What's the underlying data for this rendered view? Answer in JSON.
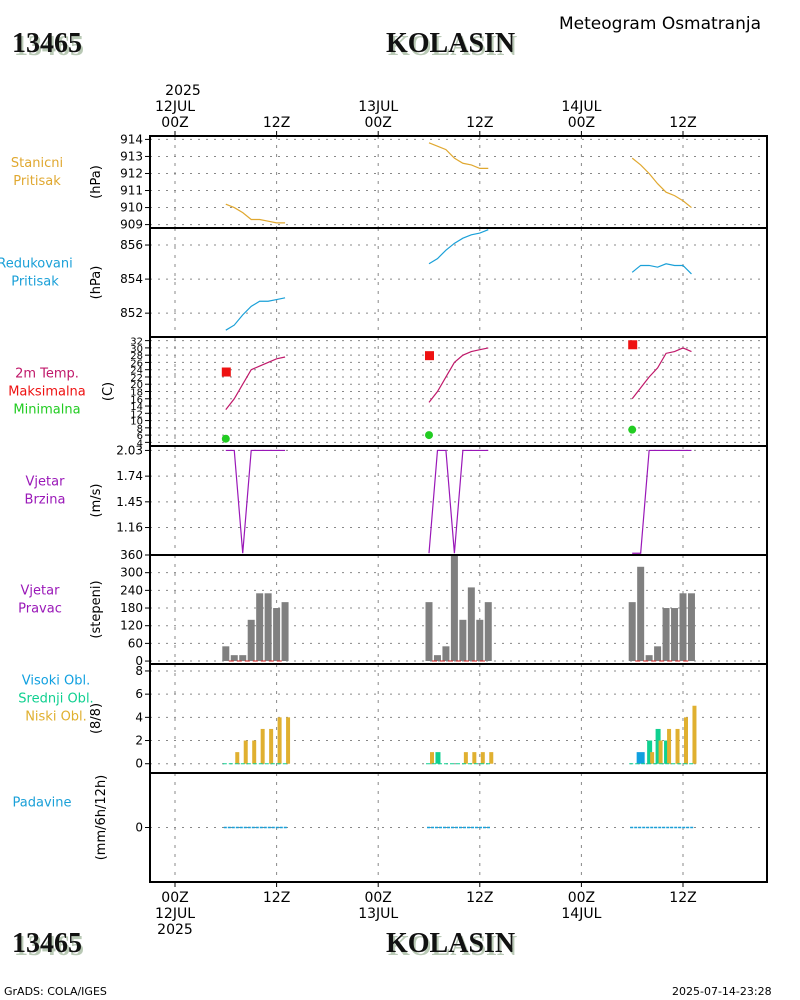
{
  "header": {
    "station_id": "13465",
    "station_name": "KOLASIN",
    "subtitle": "Meteogram Osmatranja"
  },
  "footer": {
    "station_id": "13465",
    "station_name": "KOLASIN",
    "software": "GrADS: COLA/IGES",
    "timestamp": "2025-07-14-23:28"
  },
  "time_axis": {
    "top_labels": [
      {
        "h": 0,
        "lines": [
          "2025",
          "12JUL",
          "00Z"
        ]
      },
      {
        "h": 12,
        "lines": [
          "12Z"
        ]
      },
      {
        "h": 24,
        "lines": [
          "13JUL",
          "00Z"
        ]
      },
      {
        "h": 36,
        "lines": [
          "12Z"
        ]
      },
      {
        "h": 48,
        "lines": [
          "14JUL",
          "00Z"
        ]
      },
      {
        "h": 60,
        "lines": [
          "12Z"
        ]
      }
    ],
    "bottom_labels": [
      {
        "h": 0,
        "lines": [
          "00Z",
          "12JUL",
          "2025"
        ]
      },
      {
        "h": 12,
        "lines": [
          "12Z"
        ]
      },
      {
        "h": 24,
        "lines": [
          "00Z",
          "13JUL"
        ]
      },
      {
        "h": 36,
        "lines": [
          "12Z"
        ]
      },
      {
        "h": 48,
        "lines": [
          "00Z",
          "14JUL"
        ]
      },
      {
        "h": 60,
        "lines": [
          "12Z"
        ]
      }
    ]
  },
  "colors": {
    "station_pressure": "#e0a830",
    "reduced_pressure": "#1aa0d8",
    "temp": "#c0186a",
    "tmax": "#ee1111",
    "tmin": "#22cc22",
    "wind": "#9a18b8",
    "wind_dir_bar": "#808080",
    "wind_dir_base": "#dd2222",
    "cloud_high": "#10a0e0",
    "cloud_mid": "#10d090",
    "cloud_low": "#e0b030",
    "precip": "#1aa0d8"
  },
  "chart_data": [
    {
      "type": "line",
      "id": "station_pressure",
      "title_lines": [
        "Stanicni",
        "Pritisak"
      ],
      "ylabel": "(hPa)",
      "ylim": [
        908.8,
        914.2
      ],
      "yticks": [
        "909",
        "910",
        "911",
        "912",
        "913",
        "914"
      ],
      "ytick_values": [
        909,
        910,
        911,
        912,
        913,
        914
      ],
      "series": [
        {
          "name": "day1",
          "x": [
            6,
            7,
            8,
            9,
            10,
            11,
            12,
            13
          ],
          "y": [
            910.2,
            910.0,
            909.7,
            909.3,
            909.3,
            909.2,
            909.1,
            909.1
          ]
        },
        {
          "name": "day2",
          "x": [
            30,
            31,
            32,
            33,
            34,
            35,
            36,
            37
          ],
          "y": [
            913.8,
            913.6,
            913.4,
            912.9,
            912.6,
            912.5,
            912.3,
            912.3
          ]
        },
        {
          "name": "day3",
          "x": [
            54,
            55,
            56,
            57,
            58,
            59,
            60,
            61
          ],
          "y": [
            912.9,
            912.5,
            912.0,
            911.4,
            910.9,
            910.7,
            910.4,
            910.0
          ]
        }
      ]
    },
    {
      "type": "line",
      "id": "reduced_pressure",
      "title_lines": [
        "Redukovani",
        "Pritisak"
      ],
      "ylabel": "(hPa)",
      "ylim": [
        850.6,
        857.0
      ],
      "yticks": [
        "852",
        "854",
        "856"
      ],
      "ytick_values": [
        852,
        854,
        856
      ],
      "series": [
        {
          "name": "day1",
          "x": [
            6,
            7,
            8,
            9,
            10,
            11,
            12,
            13
          ],
          "y": [
            851.0,
            851.3,
            851.9,
            852.4,
            852.7,
            852.7,
            852.8,
            852.9
          ]
        },
        {
          "name": "day2",
          "x": [
            30,
            31,
            32,
            33,
            34,
            35,
            36,
            37
          ],
          "y": [
            854.9,
            855.2,
            855.7,
            856.1,
            856.4,
            856.6,
            856.7,
            856.9
          ]
        },
        {
          "name": "day3",
          "x": [
            54,
            55,
            56,
            57,
            58,
            59,
            60,
            61
          ],
          "y": [
            854.4,
            854.8,
            854.8,
            854.7,
            854.9,
            854.8,
            854.8,
            854.3
          ]
        }
      ]
    },
    {
      "type": "line",
      "id": "temperature",
      "title_lines": [
        "2m Temp.",
        "Maksimalna",
        "Minimalna"
      ],
      "ylabel": "(C)",
      "ylim": [
        3,
        33
      ],
      "yticks": [
        "4",
        "6",
        "8",
        "10",
        "12",
        "14",
        "16",
        "18",
        "20",
        "22",
        "24",
        "26",
        "28",
        "30",
        "32"
      ],
      "ytick_values": [
        4,
        6,
        8,
        10,
        12,
        14,
        16,
        18,
        20,
        22,
        24,
        26,
        28,
        30,
        32
      ],
      "series": [
        {
          "name": "day1",
          "x": [
            6,
            7,
            8,
            9,
            10,
            11,
            12,
            13
          ],
          "y": [
            13,
            16,
            20,
            24,
            25,
            26,
            27,
            27.5
          ]
        },
        {
          "name": "day2",
          "x": [
            30,
            31,
            32,
            33,
            34,
            35,
            36,
            37
          ],
          "y": [
            15,
            18,
            22,
            26,
            28,
            29,
            29.5,
            30
          ]
        },
        {
          "name": "day3",
          "x": [
            54,
            55,
            56,
            57,
            58,
            59,
            60,
            61
          ],
          "y": [
            16,
            19,
            22,
            24.5,
            28.5,
            29,
            30,
            29
          ]
        }
      ],
      "tmax": [
        {
          "x": 6,
          "y": 23.5
        },
        {
          "x": 30,
          "y": 28
        },
        {
          "x": 54,
          "y": 31
        }
      ],
      "tmin": [
        {
          "x": 6,
          "y": 5
        },
        {
          "x": 30,
          "y": 6
        },
        {
          "x": 54,
          "y": 7.5
        }
      ]
    },
    {
      "type": "line",
      "id": "wind_speed",
      "title_lines": [
        "Vjetar",
        "Brzina"
      ],
      "ylabel": "(m/s)",
      "ylim": [
        0.85,
        2.08
      ],
      "yticks": [
        "1.16",
        "1.45",
        "1.74",
        "2.03"
      ],
      "ytick_values": [
        1.16,
        1.45,
        1.74,
        2.03
      ],
      "series": [
        {
          "name": "day1",
          "x": [
            6,
            7,
            8,
            9,
            10,
            11,
            12,
            13
          ],
          "y": [
            2.03,
            2.03,
            0.87,
            2.03,
            2.03,
            2.03,
            2.03,
            2.03
          ]
        },
        {
          "name": "day2",
          "x": [
            30,
            31,
            32,
            33,
            34,
            35,
            36,
            37
          ],
          "y": [
            0.87,
            2.03,
            2.03,
            0.87,
            2.03,
            2.03,
            2.03,
            2.03
          ]
        },
        {
          "name": "day3",
          "x": [
            54,
            55,
            56,
            57,
            58,
            59,
            60,
            61
          ],
          "y": [
            0.87,
            0.87,
            2.03,
            2.03,
            2.03,
            2.03,
            2.03,
            2.03
          ]
        }
      ]
    },
    {
      "type": "bar",
      "id": "wind_direction",
      "title_lines": [
        "Vjetar",
        "Pravac"
      ],
      "ylabel": "(stepeni)",
      "ylim": [
        -10,
        360
      ],
      "yticks": [
        "0",
        "60",
        "120",
        "180",
        "240",
        "300",
        "360"
      ],
      "ytick_values": [
        0,
        60,
        120,
        180,
        240,
        300,
        360
      ],
      "series": [
        {
          "name": "day1",
          "x": [
            6,
            7,
            8,
            9,
            10,
            11,
            12,
            13
          ],
          "y": [
            50,
            20,
            20,
            140,
            230,
            230,
            180,
            200
          ]
        },
        {
          "name": "day2",
          "x": [
            30,
            31,
            32,
            33,
            34,
            35,
            36,
            37
          ],
          "y": [
            200,
            20,
            50,
            360,
            140,
            250,
            140,
            200
          ]
        },
        {
          "name": "day3",
          "x": [
            54,
            55,
            56,
            57,
            58,
            59,
            60,
            61
          ],
          "y": [
            200,
            320,
            20,
            50,
            180,
            180,
            230,
            230
          ]
        }
      ]
    },
    {
      "type": "bar",
      "id": "cloud_cover",
      "title_lines": [
        "Visoki Obl.",
        "Srednji Obl.",
        "Niski Obl."
      ],
      "ylabel": "(8/8)",
      "ylim": [
        -0.8,
        8.6
      ],
      "yticks": [
        "0",
        "2",
        "4",
        "6",
        "8"
      ],
      "ytick_values": [
        0,
        2,
        4,
        6,
        8
      ],
      "series": [
        {
          "name": "high",
          "x": [
            6,
            7,
            8,
            9,
            10,
            11,
            12,
            13,
            30,
            31,
            32,
            33,
            34,
            35,
            36,
            37,
            54,
            55,
            56,
            57,
            58,
            59,
            60,
            61
          ],
          "y": [
            0,
            0,
            0,
            0,
            0,
            0,
            0,
            0,
            0,
            0,
            0,
            0,
            0,
            0,
            0,
            0,
            0,
            1,
            0,
            0,
            0,
            0,
            0,
            0
          ]
        },
        {
          "name": "mid",
          "x": [
            6,
            7,
            8,
            9,
            10,
            11,
            12,
            13,
            30,
            31,
            32,
            33,
            34,
            35,
            36,
            37,
            54,
            55,
            56,
            57,
            58,
            59,
            60,
            61
          ],
          "y": [
            0,
            0,
            0,
            0,
            0,
            0,
            0,
            0,
            0,
            1,
            0,
            0,
            0,
            0,
            0,
            0,
            0,
            0,
            2,
            3,
            2,
            0,
            0,
            0
          ]
        },
        {
          "name": "low",
          "x": [
            6,
            7,
            8,
            9,
            10,
            11,
            12,
            13,
            30,
            31,
            32,
            33,
            34,
            35,
            36,
            37,
            54,
            55,
            56,
            57,
            58,
            59,
            60,
            61
          ],
          "y": [
            0,
            1,
            2,
            2,
            3,
            3,
            4,
            4,
            1,
            0,
            0,
            0,
            1,
            1,
            1,
            1,
            0,
            0,
            1,
            2,
            3,
            3,
            4,
            5
          ]
        }
      ]
    },
    {
      "type": "bar",
      "id": "precipitation",
      "title_lines": [
        "Padavine"
      ],
      "ylabel": "(mm/6h/12h)",
      "ylim": [
        -1,
        1
      ],
      "yticks": [
        "0"
      ],
      "ytick_values": [
        0
      ],
      "series": [
        {
          "name": "day1",
          "x": [
            6,
            7,
            8,
            9,
            10,
            11,
            12,
            13
          ],
          "y": [
            0,
            0,
            0,
            0,
            0,
            0,
            0,
            0
          ]
        },
        {
          "name": "day2",
          "x": [
            30,
            31,
            32,
            33,
            34,
            35,
            36,
            37
          ],
          "y": [
            0,
            0,
            0,
            0,
            0,
            0,
            0,
            0
          ]
        },
        {
          "name": "day3",
          "x": [
            54,
            55,
            56,
            57,
            58,
            59,
            60,
            61
          ],
          "y": [
            0,
            0,
            0,
            0,
            0,
            0,
            0,
            0
          ]
        }
      ]
    }
  ]
}
